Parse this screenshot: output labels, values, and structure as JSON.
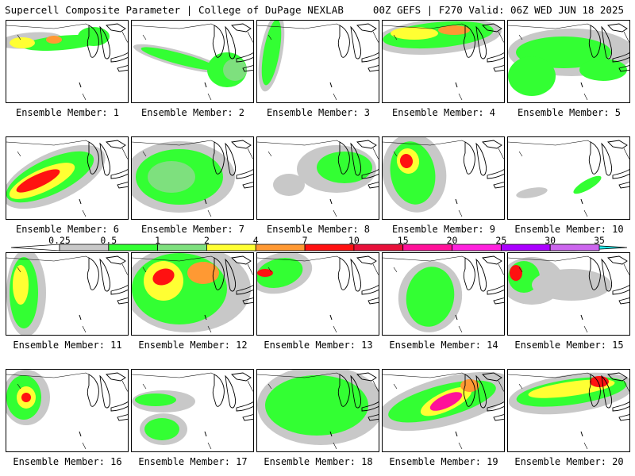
{
  "header": {
    "title": "Supercell Composite Parameter | College of DuPage NEXLAB",
    "run_info": "00Z GEFS | F270 Valid: 06Z WED JUN 18 2025"
  },
  "legend": {
    "levels": [
      "0.25",
      "0.5",
      "1",
      "2",
      "4",
      "7",
      "10",
      "15",
      "20",
      "25",
      "30",
      "35"
    ],
    "colors": [
      "#c8c8c8",
      "#33ff33",
      "#7ee07e",
      "#ffff33",
      "#ff9933",
      "#ff1111",
      "#e8103a",
      "#ff1199",
      "#ff22dd",
      "#aa00ff",
      "#cc66ee",
      "#22eeee"
    ]
  },
  "panels": [
    {
      "label": "Ensemble Member: 1"
    },
    {
      "label": "Ensemble Member: 2"
    },
    {
      "label": "Ensemble Member: 3"
    },
    {
      "label": "Ensemble Member: 4"
    },
    {
      "label": "Ensemble Member: 5"
    },
    {
      "label": "Ensemble Member: 6"
    },
    {
      "label": "Ensemble Member: 7"
    },
    {
      "label": "Ensemble Member: 8"
    },
    {
      "label": "Ensemble Member: 9"
    },
    {
      "label": "Ensemble Member: 10"
    },
    {
      "label": "Ensemble Member: 11"
    },
    {
      "label": "Ensemble Member: 12"
    },
    {
      "label": "Ensemble Member: 13"
    },
    {
      "label": "Ensemble Member: 14"
    },
    {
      "label": "Ensemble Member: 15"
    },
    {
      "label": "Ensemble Member: 16"
    },
    {
      "label": "Ensemble Member: 17"
    },
    {
      "label": "Ensemble Member: 18"
    },
    {
      "label": "Ensemble Member: 19"
    },
    {
      "label": "Ensemble Member: 20"
    }
  ]
}
